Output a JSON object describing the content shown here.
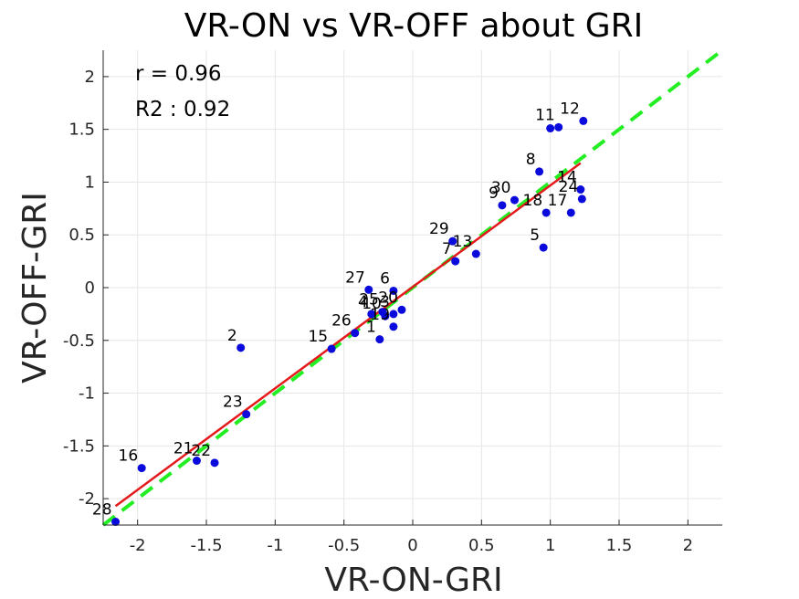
{
  "chart_data": {
    "type": "scatter",
    "title": "VR-ON vs VR-OFF about GRI",
    "xlabel": "VR-ON-GRI",
    "ylabel": "VR-OFF-GRI",
    "xlim": [
      -2.25,
      2.25
    ],
    "ylim": [
      -2.25,
      2.25
    ],
    "xticks": [
      -2,
      -1.5,
      -1,
      -0.5,
      0,
      0.5,
      1,
      1.5,
      2
    ],
    "yticks": [
      -2,
      -1.5,
      -1,
      -0.5,
      0,
      0.5,
      1,
      1.5,
      2
    ],
    "xtick_labels": [
      "-2",
      "-1.5",
      "-1",
      "-0.5",
      "0",
      "0.5",
      "1",
      "1.5",
      "2"
    ],
    "ytick_labels": [
      "-2",
      "-1.5",
      "-1",
      "-0.5",
      "0",
      "0.5",
      "1",
      "1.5",
      "2"
    ],
    "grid": true,
    "annotations": [
      "r = 0.96",
      "R2 : 0.92"
    ],
    "points": [
      {
        "label": "1",
        "x": -0.24,
        "y": -0.49
      },
      {
        "label": "2",
        "x": -1.25,
        "y": -0.57
      },
      {
        "label": "3",
        "x": -0.14,
        "y": -0.25
      },
      {
        "label": "4",
        "x": -0.3,
        "y": -0.25
      },
      {
        "label": "5",
        "x": 0.95,
        "y": 0.38
      },
      {
        "label": "6",
        "x": -0.14,
        "y": -0.03
      },
      {
        "label": "7",
        "x": 0.31,
        "y": 0.25
      },
      {
        "label": "8",
        "x": 0.92,
        "y": 1.1
      },
      {
        "label": "9",
        "x": 0.65,
        "y": 0.78
      },
      {
        "label": "10",
        "x": -0.2,
        "y": -0.27
      },
      {
        "label": "11",
        "x": 1.06,
        "y": 1.52
      },
      {
        "label": "12",
        "x": 1.24,
        "y": 1.58
      },
      {
        "label": "13",
        "x": 0.46,
        "y": 0.32
      },
      {
        "label": "14",
        "x": 1.22,
        "y": 0.93
      },
      {
        "label": "15",
        "x": -0.59,
        "y": -0.58
      },
      {
        "label": "16",
        "x": -1.97,
        "y": -1.71
      },
      {
        "label": "17",
        "x": 1.15,
        "y": 0.71
      },
      {
        "label": "18",
        "x": 0.97,
        "y": 0.71
      },
      {
        "label": "19",
        "x": -0.14,
        "y": -0.37
      },
      {
        "label": "20",
        "x": -0.08,
        "y": -0.21
      },
      {
        "label": "21",
        "x": -1.57,
        "y": -1.64
      },
      {
        "label": "22",
        "x": -1.44,
        "y": -1.66
      },
      {
        "label": "23",
        "x": -1.21,
        "y": -1.2
      },
      {
        "label": "24",
        "x": 1.23,
        "y": 0.84
      },
      {
        "label": "25",
        "x": -0.22,
        "y": -0.23
      },
      {
        "label": "26",
        "x": -0.42,
        "y": -0.43
      },
      {
        "label": "27",
        "x": -0.32,
        "y": -0.02
      },
      {
        "label": "28",
        "x": -2.16,
        "y": -2.22
      },
      {
        "label": "29",
        "x": 0.29,
        "y": 0.44
      },
      {
        "label": "30",
        "x": 0.74,
        "y": 0.83
      },
      {
        "label": "",
        "x": 1.0,
        "y": 1.51
      }
    ],
    "fit_line": {
      "color": "#e41a1c",
      "x": [
        -2.16,
        1.22
      ],
      "y": [
        -2.07,
        1.18
      ]
    },
    "identity_line": {
      "color": "#22ee22",
      "style": "dashed",
      "x": [
        -2.25,
        2.25
      ],
      "y": [
        -2.25,
        2.25
      ]
    },
    "marker_color": "#0a0adc"
  }
}
